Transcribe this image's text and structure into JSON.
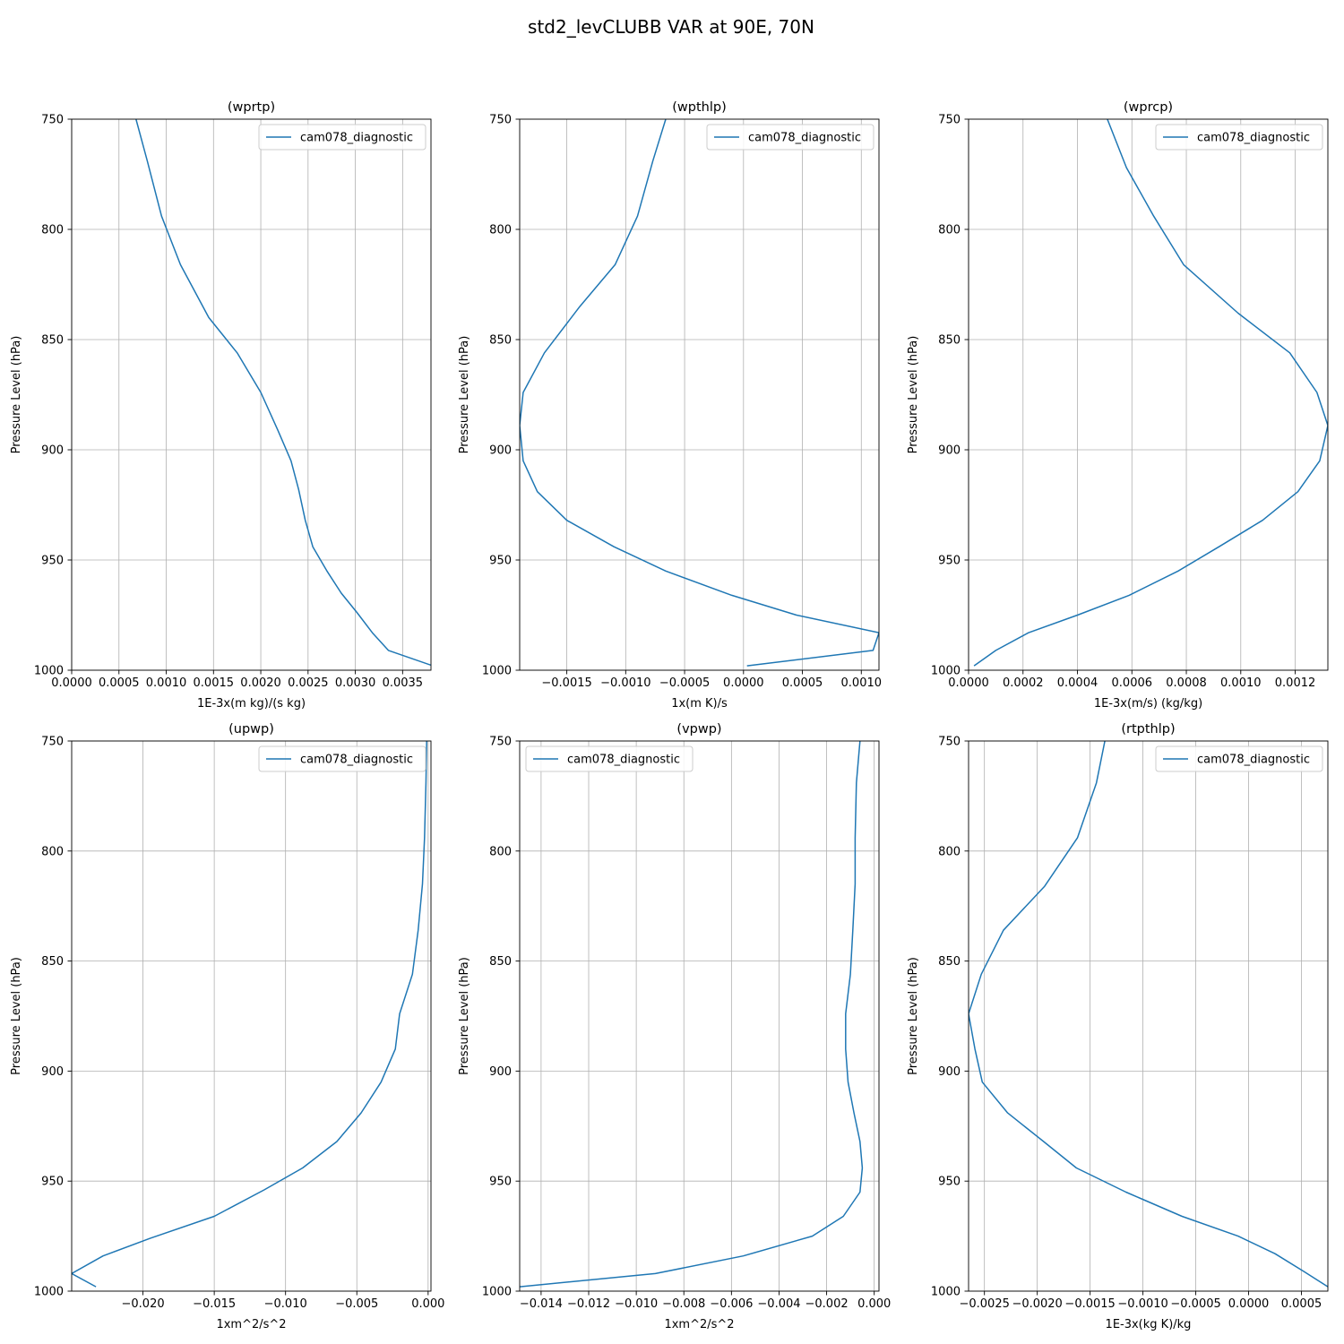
{
  "figure": {
    "title": "std2_levCLUBB VAR at 90E, 70N"
  },
  "chart_data": [
    {
      "type": "line",
      "title": "(wprtp)",
      "xlabel": "1E-3x(m kg)/(s kg)",
      "ylabel": "Pressure Level (hPa)",
      "xlim": [
        0,
        0.0038
      ],
      "ylim": [
        1000,
        750
      ],
      "xticks": [
        0,
        0.0005,
        0.001,
        0.0015,
        0.002,
        0.0025,
        0.003,
        0.0035
      ],
      "xtick_labels": [
        "0.0000",
        "0.0005",
        "0.0010",
        "0.0015",
        "0.0020",
        "0.0025",
        "0.0030",
        "0.0035"
      ],
      "yticks": [
        750,
        800,
        850,
        900,
        950,
        1000
      ],
      "ytick_labels": [
        "750",
        "800",
        "850",
        "900",
        "950",
        "1000"
      ],
      "grid": true,
      "legend_position": "upper-right",
      "series": [
        {
          "name": "cam078_diagnostic",
          "color": "#1f77b4",
          "x": [
            0.00068,
            0.0008,
            0.00095,
            0.00115,
            0.00145,
            0.00175,
            0.002,
            0.00218,
            0.00232,
            0.0024,
            0.00247,
            0.00255,
            0.0027,
            0.00285,
            0.00302,
            0.00318,
            0.00335,
            0.00382
          ],
          "y": [
            750,
            769,
            794,
            816,
            840,
            856,
            874,
            891,
            905,
            918,
            932,
            944,
            955,
            965,
            974,
            983,
            991,
            998
          ]
        }
      ]
    },
    {
      "type": "line",
      "title": "(wpthlp)",
      "xlabel": "1x(m K)/s",
      "ylabel": "Pressure Level (hPa)",
      "xlim": [
        -0.0019,
        0.00115
      ],
      "ylim": [
        1000,
        750
      ],
      "xticks": [
        -0.0015,
        -0.001,
        -0.0005,
        0,
        0.0005,
        0.001
      ],
      "xtick_labels": [
        "−0.0015",
        "−0.0010",
        "−0.0005",
        "0.0000",
        "0.0005",
        "0.0010"
      ],
      "yticks": [
        750,
        800,
        850,
        900,
        950,
        1000
      ],
      "ytick_labels": [
        "750",
        "800",
        "850",
        "900",
        "950",
        "1000"
      ],
      "grid": true,
      "legend_position": "upper-right",
      "series": [
        {
          "name": "cam078_diagnostic",
          "color": "#1f77b4",
          "x": [
            -0.00066,
            -0.00077,
            -0.0009,
            -0.00109,
            -0.00139,
            -0.00169,
            -0.00187,
            -0.0019,
            -0.00187,
            -0.00175,
            -0.0015,
            -0.0011,
            -0.00066,
            -0.0001,
            0.00045,
            0.00115,
            0.0011,
            3e-05
          ],
          "y": [
            750,
            769,
            794,
            816,
            835,
            856,
            874,
            889,
            905,
            919,
            932,
            944,
            955,
            966,
            975,
            983,
            991,
            998
          ]
        }
      ]
    },
    {
      "type": "line",
      "title": "(wprcp)",
      "xlabel": "1E-3x(m/s) (kg/kg)",
      "ylabel": "Pressure Level (hPa)",
      "xlim": [
        0,
        0.00132
      ],
      "ylim": [
        1000,
        750
      ],
      "xticks": [
        0,
        0.0002,
        0.0004,
        0.0006,
        0.0008,
        0.001,
        0.0012
      ],
      "xtick_labels": [
        "0.0000",
        "0.0002",
        "0.0004",
        "0.0006",
        "0.0008",
        "0.0010",
        "0.0012"
      ],
      "yticks": [
        750,
        800,
        850,
        900,
        950,
        1000
      ],
      "ytick_labels": [
        "750",
        "800",
        "850",
        "900",
        "950",
        "1000"
      ],
      "grid": true,
      "legend_position": "upper-right",
      "series": [
        {
          "name": "cam078_diagnostic",
          "color": "#1f77b4",
          "x": [
            0.00051,
            0.00058,
            0.00068,
            0.00079,
            0.00099,
            0.00118,
            0.00128,
            0.00132,
            0.00129,
            0.00121,
            0.00108,
            0.00092,
            0.00077,
            0.00059,
            0.0004,
            0.00022,
            0.0001,
            2e-05
          ],
          "y": [
            750,
            772,
            794,
            816,
            838,
            856,
            874,
            889,
            905,
            919,
            932,
            944,
            955,
            966,
            975,
            983,
            991,
            998
          ]
        }
      ]
    },
    {
      "type": "line",
      "title": "(upwp)",
      "xlabel": "1xm^2/s^2",
      "ylabel": "Pressure Level (hPa)",
      "xlim": [
        -0.025,
        0.0002
      ],
      "ylim": [
        1000,
        750
      ],
      "xticks": [
        -0.02,
        -0.015,
        -0.01,
        -0.005,
        0
      ],
      "xtick_labels": [
        "−0.020",
        "−0.015",
        "−0.010",
        "−0.005",
        "0.000"
      ],
      "yticks": [
        750,
        800,
        850,
        900,
        950,
        1000
      ],
      "ytick_labels": [
        "750",
        "800",
        "850",
        "900",
        "950",
        "1000"
      ],
      "grid": true,
      "legend_position": "upper-right",
      "series": [
        {
          "name": "cam078_diagnostic",
          "color": "#1f77b4",
          "x": [
            -0.0001,
            -0.00015,
            -0.00025,
            -0.0004,
            -0.0007,
            -0.0011,
            -0.002,
            -0.0023,
            -0.0033,
            -0.0047,
            -0.0064,
            -0.0088,
            -0.0115,
            -0.015,
            -0.0195,
            -0.0228,
            -0.025,
            -0.0233
          ],
          "y": [
            750,
            769,
            794,
            815,
            836,
            856,
            874,
            890,
            905,
            919,
            932,
            944,
            954,
            966,
            976,
            984,
            992,
            998
          ]
        }
      ]
    },
    {
      "type": "line",
      "title": "(vpwp)",
      "xlabel": "1xm^2/s^2",
      "ylabel": "Pressure Level (hPa)",
      "xlim": [
        -0.0149,
        0.0002
      ],
      "ylim": [
        1000,
        750
      ],
      "xticks": [
        -0.014,
        -0.012,
        -0.01,
        -0.008,
        -0.006,
        -0.004,
        -0.002,
        0
      ],
      "xtick_labels": [
        "−0.014",
        "−0.012",
        "−0.010",
        "−0.008",
        "−0.006",
        "−0.004",
        "−0.002",
        "0.000"
      ],
      "yticks": [
        750,
        800,
        850,
        900,
        950,
        1000
      ],
      "ytick_labels": [
        "750",
        "800",
        "850",
        "900",
        "950",
        "1000"
      ],
      "grid": true,
      "legend_position": "upper-left",
      "series": [
        {
          "name": "cam078_diagnostic",
          "color": "#1f77b4",
          "x": [
            -0.0006,
            -0.00075,
            -0.0008,
            -0.0008,
            -0.0009,
            -0.001,
            -0.0012,
            -0.0012,
            -0.0011,
            -0.00085,
            -0.0006,
            -0.0005,
            -0.0006,
            -0.0013,
            -0.0026,
            -0.0055,
            -0.0092,
            -0.0149
          ],
          "y": [
            750,
            769,
            794,
            815,
            836,
            856,
            874,
            890,
            905,
            919,
            932,
            944,
            955,
            966,
            975,
            984,
            992,
            998
          ]
        }
      ]
    },
    {
      "type": "line",
      "title": "(rtpthlp)",
      "xlabel": "1E-3x(kg K)/kg",
      "ylabel": "Pressure Level (hPa)",
      "xlim": [
        -0.00265,
        0.00075
      ],
      "ylim": [
        1000,
        750
      ],
      "xticks": [
        -0.0025,
        -0.002,
        -0.0015,
        -0.001,
        -0.0005,
        0,
        0.0005
      ],
      "xtick_labels": [
        "−0.0025",
        "−0.0020",
        "−0.0015",
        "−0.0010",
        "−0.0005",
        "0.0000",
        "0.0005"
      ],
      "yticks": [
        750,
        800,
        850,
        900,
        950,
        1000
      ],
      "ytick_labels": [
        "750",
        "800",
        "850",
        "900",
        "950",
        "1000"
      ],
      "grid": true,
      "legend_position": "upper-right",
      "series": [
        {
          "name": "cam078_diagnostic",
          "color": "#1f77b4",
          "x": [
            -0.00136,
            -0.00144,
            -0.00162,
            -0.00193,
            -0.00232,
            -0.00253,
            -0.00265,
            -0.00259,
            -0.00252,
            -0.00228,
            -0.00194,
            -0.00163,
            -0.00116,
            -0.00063,
            -0.0001,
            0.00025,
            0.00052,
            0.00075
          ],
          "y": [
            750,
            769,
            794,
            816,
            836,
            856,
            874,
            890,
            905,
            919,
            932,
            944,
            955,
            966,
            975,
            983,
            991,
            998
          ]
        }
      ]
    }
  ]
}
